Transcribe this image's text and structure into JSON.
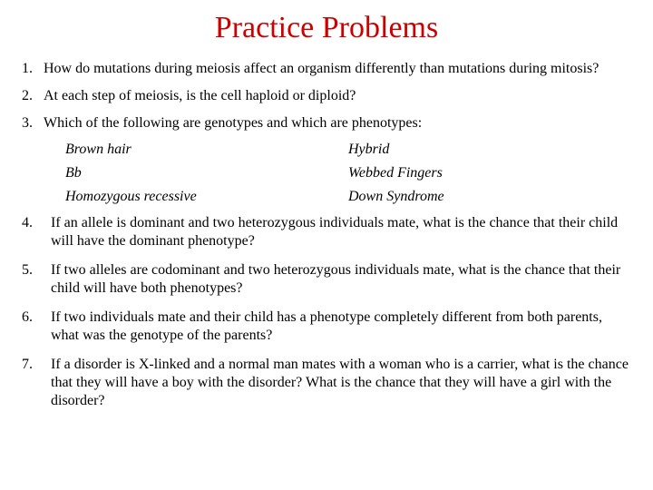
{
  "title": "Practice Problems",
  "q1": {
    "num": "1.",
    "text": "How do mutations during meiosis affect an organism differently than mutations during mitosis?"
  },
  "q2": {
    "num": "2.",
    "text": "At each step of meiosis, is the cell haploid or diploid?"
  },
  "q3": {
    "num": "3.",
    "text": "Which of the following are genotypes and which are phenotypes:"
  },
  "examples": {
    "a": "Brown hair",
    "b": "Hybrid",
    "c": "Bb",
    "d": "Webbed Fingers",
    "e": "Homozygous recessive",
    "f": "Down Syndrome"
  },
  "q4": {
    "num": "4.",
    "text": "If an allele is dominant and two heterozygous individuals mate, what is the chance that their child will have the dominant phenotype?"
  },
  "q5": {
    "num": "5.",
    "text": "If two alleles are codominant and two heterozygous individuals mate, what is the chance that their child will have both phenotypes?"
  },
  "q6": {
    "num": "6.",
    "text": "If two individuals mate and their child has a phenotype completely different from both parents, what was the genotype of the parents?"
  },
  "q7": {
    "num": "7.",
    "text": "If a disorder is X-linked and a normal man mates with a woman who is a carrier, what is the chance that they will have a boy with the disorder? What is the chance that they will have a girl with the disorder?"
  },
  "colors": {
    "title": "#cc0000",
    "text": "#000000",
    "background": "#ffffff"
  },
  "typography": {
    "title_fontsize": 34,
    "body_fontsize": 16,
    "font_family": "Times New Roman"
  }
}
